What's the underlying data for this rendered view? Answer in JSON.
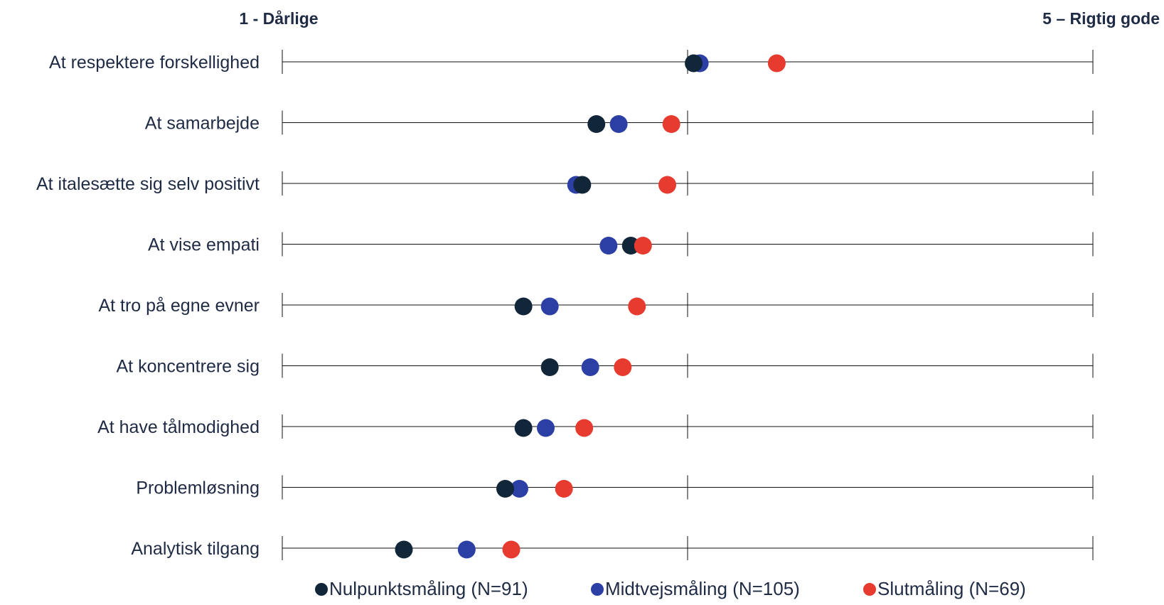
{
  "chart_data": {
    "type": "scatter",
    "scale_left_label": "1 - Dårlige",
    "scale_right_label": "5 – Rigtig gode",
    "xlim": [
      1,
      5
    ],
    "ticks": [
      1,
      3,
      5
    ],
    "grid": false,
    "legend_position": "bottom",
    "categories": [
      "At respektere forskellighed",
      "At samarbejde",
      "At italesætte sig selv positivt",
      "At vise empati",
      "At tro på egne evner",
      "At koncentrere sig",
      "At have tålmodighed",
      "Problemløsning",
      "Analytisk tilgang"
    ],
    "series": [
      {
        "name": "Nulpunktsmåling (N=91)",
        "color": "#12263a",
        "values": [
          3.03,
          2.55,
          2.48,
          2.72,
          2.19,
          2.32,
          2.19,
          2.1,
          1.6
        ]
      },
      {
        "name": "Midtvejsmåling (N=105)",
        "color": "#2c3fa5",
        "values": [
          3.06,
          2.66,
          2.45,
          2.61,
          2.32,
          2.52,
          2.3,
          2.17,
          1.91
        ]
      },
      {
        "name": "Slutmåling (N=69)",
        "color": "#e63b2e",
        "values": [
          3.44,
          2.92,
          2.9,
          2.78,
          2.75,
          2.68,
          2.49,
          2.39,
          2.13
        ]
      }
    ]
  }
}
